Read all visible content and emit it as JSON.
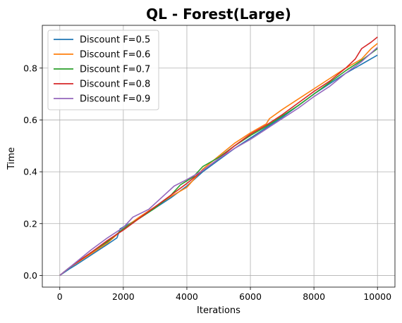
{
  "chart_data": {
    "type": "line",
    "title": "QL - Forest(Large)",
    "xlabel": "Iterations",
    "ylabel": "Time",
    "xlim": [
      -550,
      10550
    ],
    "ylim": [
      -0.045,
      0.965
    ],
    "xticks": [
      0,
      2000,
      4000,
      6000,
      8000,
      10000
    ],
    "xtick_labels": [
      "0",
      "2000",
      "4000",
      "6000",
      "8000",
      "10000"
    ],
    "yticks": [
      0.0,
      0.2,
      0.4,
      0.6,
      0.8
    ],
    "ytick_labels": [
      "0.0",
      "0.2",
      "0.4",
      "0.6",
      "0.8"
    ],
    "grid": true,
    "legend_position": "top-left",
    "series": [
      {
        "name": "Discount F=0.5",
        "color": "#1f77b4",
        "x": [
          0,
          300,
          500,
          1000,
          1500,
          1800,
          1900,
          2500,
          3000,
          3500,
          4000,
          4500,
          5000,
          5500,
          6000,
          6500,
          7000,
          7500,
          8000,
          8500,
          9000,
          9500,
          10000
        ],
        "y": [
          0,
          0.025,
          0.04,
          0.08,
          0.12,
          0.145,
          0.18,
          0.22,
          0.26,
          0.3,
          0.345,
          0.4,
          0.445,
          0.49,
          0.53,
          0.57,
          0.61,
          0.655,
          0.7,
          0.74,
          0.78,
          0.815,
          0.85
        ]
      },
      {
        "name": "Discount F=0.6",
        "color": "#ff7f0e",
        "x": [
          0,
          300,
          1000,
          1500,
          2000,
          2500,
          3000,
          3500,
          4000,
          4500,
          5000,
          5500,
          6000,
          6500,
          6600,
          7000,
          7500,
          8000,
          8500,
          9000,
          9500,
          9800,
          10000
        ],
        "y": [
          0,
          0.03,
          0.085,
          0.125,
          0.18,
          0.225,
          0.265,
          0.305,
          0.34,
          0.41,
          0.46,
          0.51,
          0.55,
          0.585,
          0.605,
          0.64,
          0.68,
          0.72,
          0.76,
          0.8,
          0.835,
          0.875,
          0.895
        ]
      },
      {
        "name": "Discount F=0.7",
        "color": "#2ca02c",
        "x": [
          0,
          300,
          1000,
          1500,
          2000,
          2500,
          3000,
          3500,
          3800,
          4200,
          4500,
          5000,
          5500,
          6000,
          6500,
          7000,
          7500,
          8000,
          8500,
          9000,
          9500,
          10000
        ],
        "y": [
          0,
          0.03,
          0.09,
          0.13,
          0.18,
          0.22,
          0.26,
          0.31,
          0.35,
          0.38,
          0.42,
          0.455,
          0.5,
          0.54,
          0.575,
          0.615,
          0.655,
          0.7,
          0.745,
          0.79,
          0.83,
          0.875
        ]
      },
      {
        "name": "Discount F=0.8",
        "color": "#d62728",
        "x": [
          0,
          300,
          1000,
          1500,
          2000,
          2500,
          3000,
          3500,
          4000,
          4500,
          5000,
          5500,
          6000,
          6500,
          7000,
          7500,
          8000,
          8500,
          9000,
          9300,
          9500,
          9800,
          10000
        ],
        "y": [
          0,
          0.03,
          0.09,
          0.135,
          0.175,
          0.22,
          0.265,
          0.31,
          0.355,
          0.405,
          0.45,
          0.5,
          0.545,
          0.58,
          0.62,
          0.665,
          0.71,
          0.75,
          0.8,
          0.835,
          0.875,
          0.9,
          0.92
        ]
      },
      {
        "name": "Discount F=0.9",
        "color": "#9467bd",
        "x": [
          0,
          300,
          1000,
          1500,
          2000,
          2300,
          2800,
          3200,
          3600,
          4000,
          4500,
          5000,
          5500,
          6000,
          6500,
          7000,
          7500,
          8000,
          8500,
          9000,
          9500,
          10000
        ],
        "y": [
          0,
          0.03,
          0.1,
          0.145,
          0.185,
          0.225,
          0.255,
          0.3,
          0.345,
          0.37,
          0.405,
          0.45,
          0.49,
          0.525,
          0.565,
          0.605,
          0.645,
          0.69,
          0.73,
          0.78,
          0.825,
          0.88
        ]
      }
    ]
  }
}
